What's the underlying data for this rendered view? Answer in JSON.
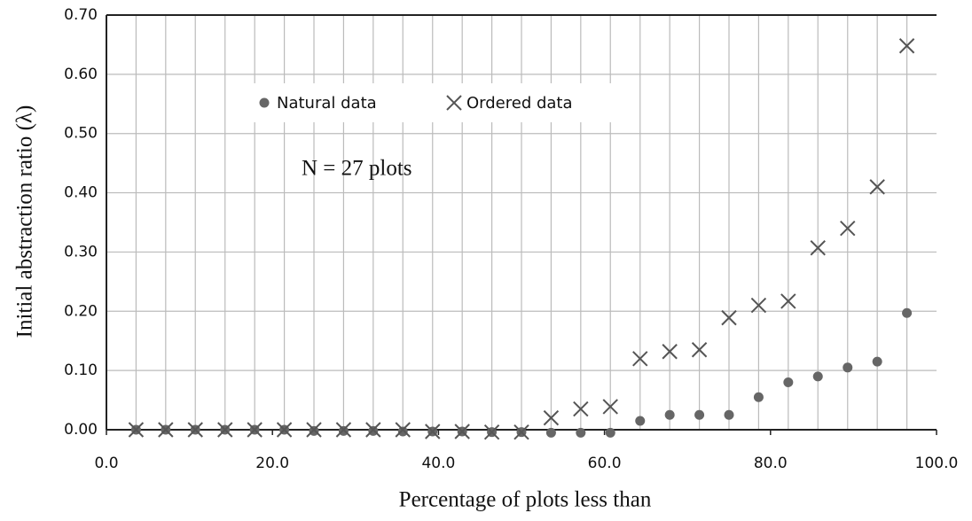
{
  "chart_data": {
    "type": "scatter",
    "xlabel": "Percentage of plots less than",
    "ylabel": "Initial abstraction ratio (λ)",
    "annotation": "N = 27 plots",
    "x": [
      3.57,
      7.14,
      10.71,
      14.29,
      17.86,
      21.43,
      25.0,
      28.57,
      32.14,
      35.71,
      39.29,
      42.86,
      46.43,
      50.0,
      53.57,
      57.14,
      60.71,
      64.29,
      67.86,
      71.43,
      75.0,
      78.57,
      82.14,
      85.71,
      89.29,
      92.86,
      96.43
    ],
    "series": [
      {
        "name": "Natural data",
        "color": "#666666",
        "marker": "circle",
        "values": [
          0,
          0,
          0,
          0,
          0,
          0,
          -0.002,
          -0.002,
          -0.002,
          -0.003,
          -0.003,
          -0.003,
          -0.004,
          -0.004,
          -0.005,
          -0.005,
          -0.005,
          0.015,
          0.025,
          0.025,
          0.025,
          0.055,
          0.08,
          0.09,
          0.105,
          0.115,
          0.197
        ]
      },
      {
        "name": "Ordered data",
        "color": "#555555",
        "marker": "cross",
        "values": [
          0,
          0,
          0,
          0,
          0,
          0,
          0,
          0,
          0,
          0,
          -0.003,
          -0.003,
          -0.004,
          -0.004,
          0.02,
          0.035,
          0.039,
          0.12,
          0.132,
          0.135,
          0.189,
          0.21,
          0.217,
          0.307,
          0.34,
          0.41,
          0.648
        ]
      }
    ],
    "xlim": [
      0,
      100
    ],
    "xticks": [
      {
        "value": 0,
        "label": "0.0"
      },
      {
        "value": 20,
        "label": "20.0"
      },
      {
        "value": 40,
        "label": "40.0"
      },
      {
        "value": 60,
        "label": "60.0"
      },
      {
        "value": 80,
        "label": "80.0"
      },
      {
        "value": 100,
        "label": "100.0"
      }
    ],
    "ylim": [
      0,
      0.7
    ],
    "yticks": [
      {
        "value": 0,
        "label": "0.00"
      },
      {
        "value": 0.1,
        "label": "0.10"
      },
      {
        "value": 0.2,
        "label": "0.20"
      },
      {
        "value": 0.3,
        "label": "0.30"
      },
      {
        "value": 0.4,
        "label": "0.40"
      },
      {
        "value": 0.5,
        "label": "0.50"
      },
      {
        "value": 0.6,
        "label": "0.60"
      },
      {
        "value": 0.7,
        "label": "0.70"
      }
    ],
    "grid": true
  }
}
